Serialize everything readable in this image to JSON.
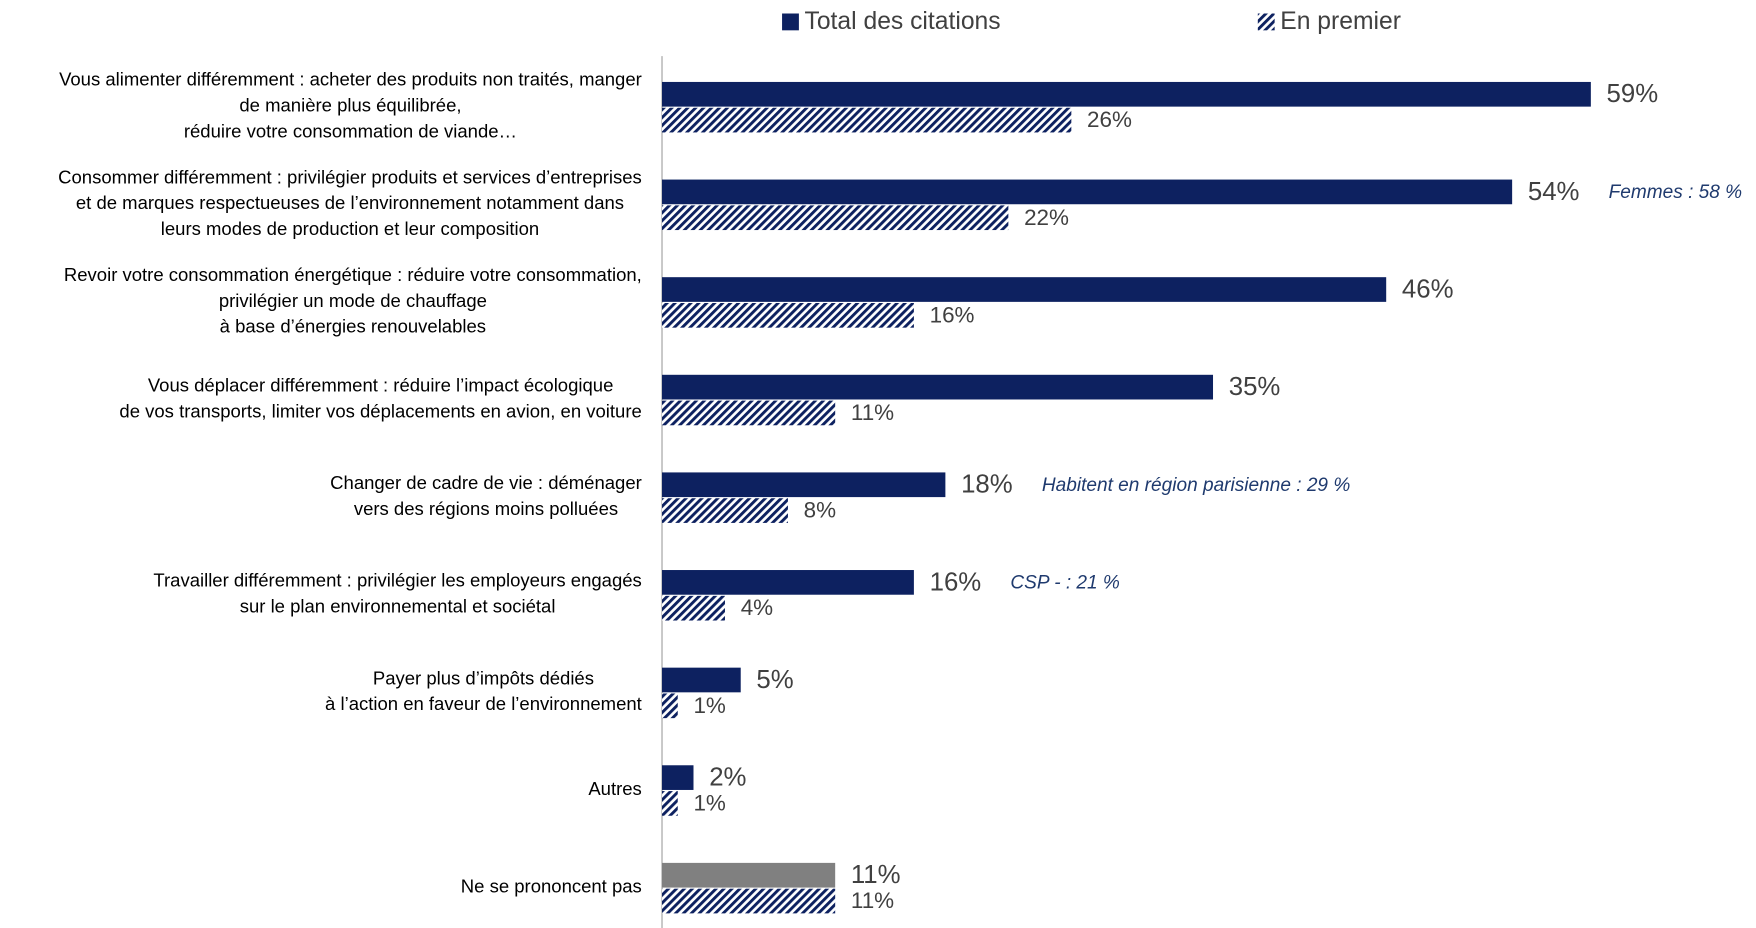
{
  "chart_data": {
    "type": "bar",
    "orientation": "horizontal",
    "categories": [
      [
        "Vous alimenter différemment : acheter des produits non traités, manger",
        "de manière plus équilibrée,",
        "réduire votre consommation de viande…"
      ],
      [
        "Consommer différemment : privilégier produits et services d’entreprises",
        "et de marques respectueuses de l’environnement notamment dans",
        "leurs modes de production et leur composition"
      ],
      [
        "Revoir votre consommation énergétique : réduire votre consommation,",
        "privilégier un mode de chauffage",
        "à base d’énergies renouvelables"
      ],
      [
        "Vous déplacer différemment : réduire l’impact écologique",
        "de vos transports, limiter vos déplacements en avion, en voiture"
      ],
      [
        "Changer de cadre de vie : déménager",
        "vers des régions moins polluées"
      ],
      [
        "Travailler différemment : privilégier les employeurs engagés",
        "sur le plan environnemental et sociétal"
      ],
      [
        "Payer plus d’impôts dédiés",
        "à l’action en faveur de l’environnement"
      ],
      [
        "Autres"
      ],
      [
        "Ne se prononcent pas"
      ]
    ],
    "series": [
      {
        "name": "Total des citations",
        "color": "#0d2160",
        "colors": [
          "#0d2160",
          "#0d2160",
          "#0d2160",
          "#0d2160",
          "#0d2160",
          "#0d2160",
          "#0d2160",
          "#0d2160",
          "#808080"
        ],
        "values": [
          59,
          54,
          46,
          35,
          18,
          16,
          5,
          2,
          11
        ],
        "value_labels": [
          "59%",
          "54%",
          "46%",
          "35%",
          "18%",
          "16%",
          "5%",
          "2%",
          "11%"
        ]
      },
      {
        "name": "En premier",
        "color": "#0d2160",
        "pattern": "hatch",
        "values": [
          26,
          22,
          16,
          11,
          8,
          4,
          1,
          1,
          11
        ],
        "value_labels": [
          "26%",
          "22%",
          "16%",
          "11%",
          "8%",
          "4%",
          "1%",
          "1%",
          "11%"
        ]
      }
    ],
    "annotations": [
      null,
      "Femmes : 58 %",
      null,
      null,
      "Habitent en région parisienne : 29 %",
      "CSP - : 21 %",
      null,
      null,
      null
    ],
    "xlim": [
      0,
      65
    ],
    "legend": "top"
  }
}
